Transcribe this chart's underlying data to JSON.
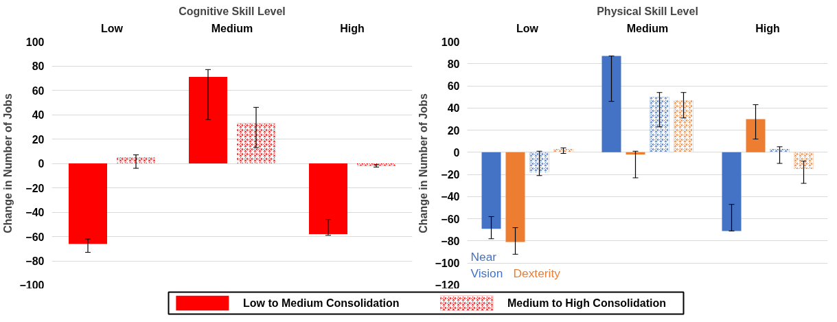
{
  "chart_data": [
    {
      "type": "bar",
      "title": "Cognitive Skill Level",
      "ylabel": "Change in Number of Jobs",
      "categories": [
        "Low",
        "Medium",
        "High"
      ],
      "ylim": [
        -100,
        100
      ],
      "yticks": [
        -100,
        -80,
        -60,
        -40,
        -20,
        0,
        20,
        40,
        60,
        80,
        100
      ],
      "grid": "y",
      "legend": "bottom",
      "series": [
        {
          "name": "Low to Medium Consolidation",
          "color": "#ff0000",
          "values": [
            -66,
            71,
            -58
          ],
          "errors": [
            [
              -73,
              -62
            ],
            [
              36,
              77
            ],
            [
              -59,
              -46
            ]
          ]
        },
        {
          "name": "Medium to High Consolidation",
          "color": "#ff0000",
          "values": [
            5,
            33,
            -2
          ],
          "errors": [
            [
              -4,
              7
            ],
            [
              13,
              46
            ],
            [
              -3,
              -1
            ]
          ]
        }
      ]
    },
    {
      "type": "bar",
      "title": "Physical Skill Level",
      "ylabel": "Change in Number of Jobs",
      "categories": [
        "Low",
        "Medium",
        "High"
      ],
      "ylim": [
        -120,
        100
      ],
      "yticks": [
        -120,
        -100,
        -80,
        -60,
        -40,
        -20,
        0,
        20,
        40,
        60,
        80,
        100
      ],
      "grid": "y",
      "annotations": [
        "Near Vision",
        "Dexterity"
      ],
      "series": [
        {
          "color": "#4472c4",
          "values": [
            -69,
            87,
            -71
          ],
          "errors": [
            [
              -78,
              -58
            ],
            [
              46,
              87
            ],
            [
              -71,
              -47
            ]
          ]
        },
        {
          "color": "#ed7d31",
          "values": [
            -81,
            -2,
            30
          ],
          "errors": [
            [
              -92,
              -68
            ],
            [
              -23,
              1
            ],
            [
              12,
              43
            ]
          ]
        },
        {
          "color": "#4472c4",
          "values": [
            -18,
            50,
            3
          ],
          "errors": [
            [
              -21,
              1
            ],
            [
              23,
              54
            ],
            [
              -10,
              5
            ]
          ]
        },
        {
          "color": "#ed7d31",
          "values": [
            3,
            47,
            -15
          ],
          "errors": [
            [
              -1,
              4
            ],
            [
              31,
              54
            ],
            [
              -28,
              -8
            ]
          ]
        }
      ]
    }
  ]
}
